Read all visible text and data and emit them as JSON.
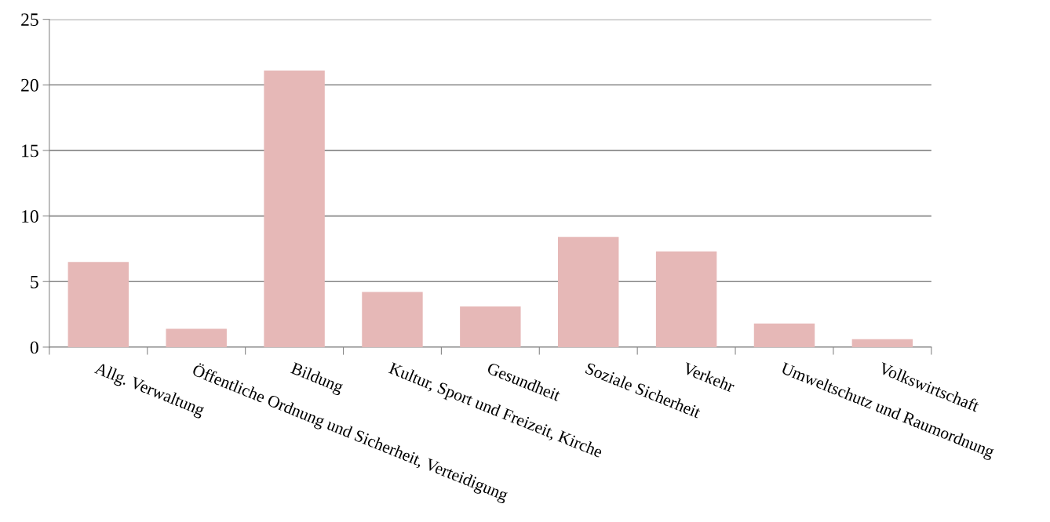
{
  "chart_data": {
    "type": "bar",
    "categories": [
      "Allg. Verwaltung",
      "Öffentliche Ordnung und Sicherheit, Verteidigung",
      "Bildung",
      "Kultur, Sport und Freizeit, Kirche",
      "Gesundheit",
      "Soziale Sicherheit",
      "Verkehr",
      "Umweltschutz und Raumordnung",
      "Volkswirtschaft"
    ],
    "values": [
      6.5,
      1.4,
      21.1,
      4.2,
      3.1,
      8.4,
      7.3,
      1.8,
      0.6
    ],
    "color": "#e6b8b7",
    "ylim": [
      0,
      25
    ],
    "yticks": [
      0,
      5,
      10,
      15,
      20,
      25
    ],
    "grid": "y",
    "legend": false
  }
}
